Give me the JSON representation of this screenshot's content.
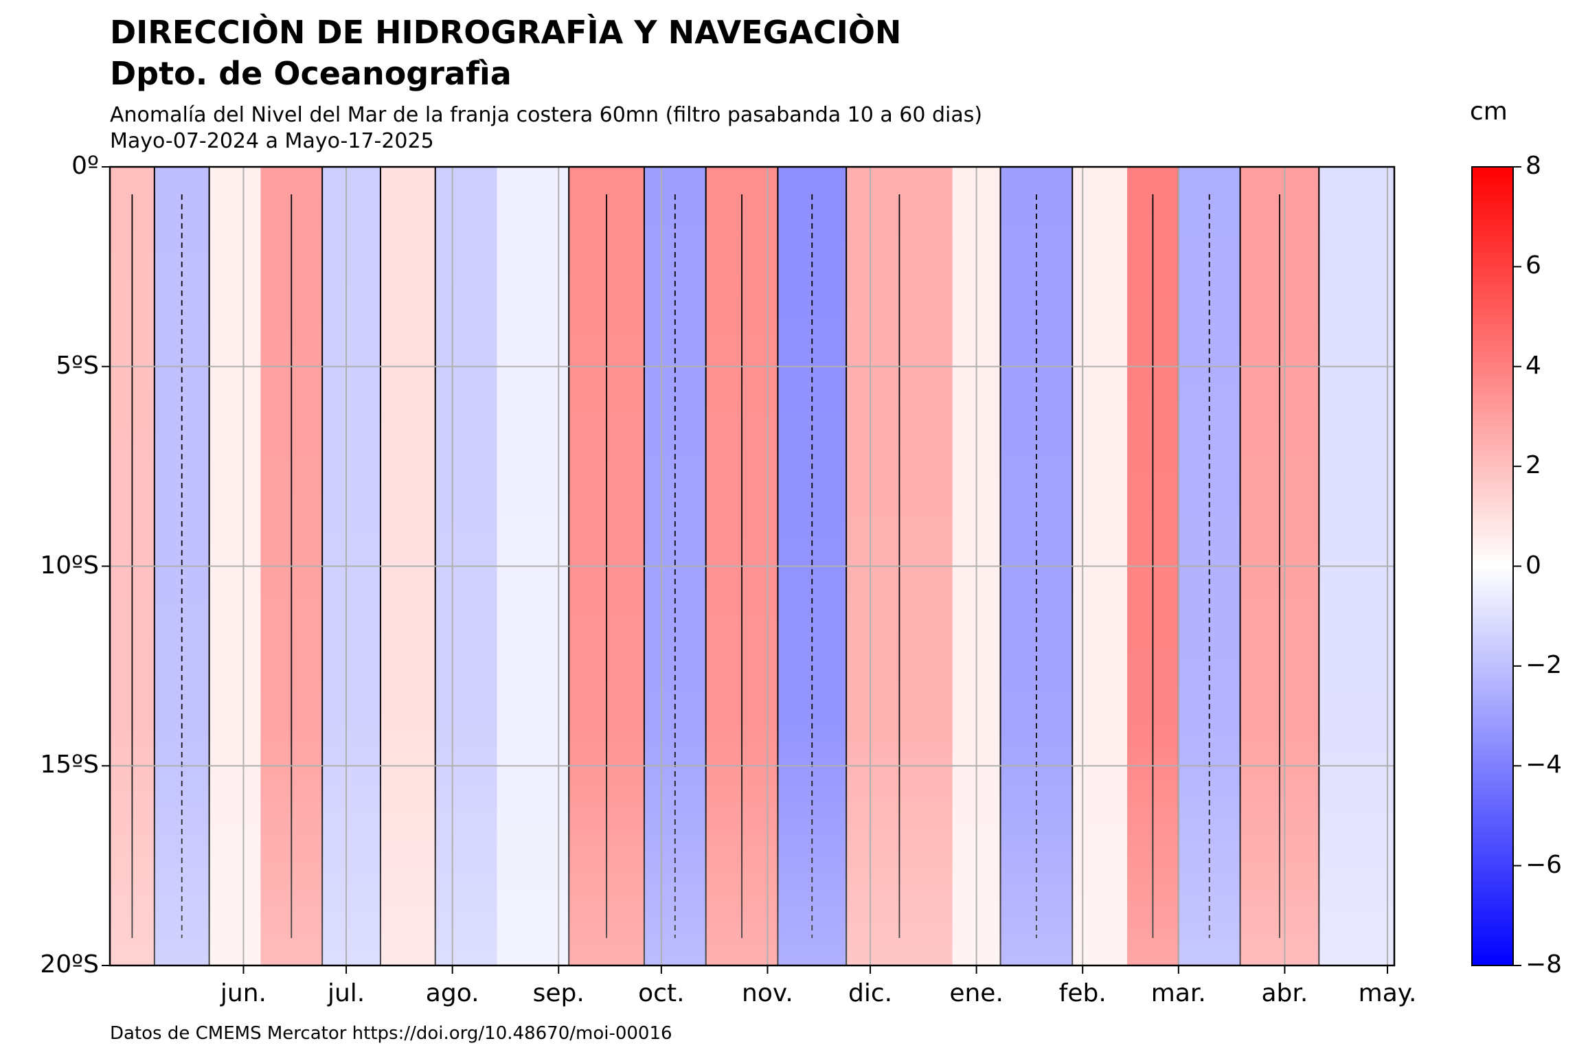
{
  "header": {
    "title_line1": "DIRECCIÒN DE HIDROGRAFÌA Y NAVEGACIÒN",
    "title_line2": "Dpto. de Oceanografìa",
    "subtitle_line1": "Anomalía del Nivel del Mar de la franja costera 60mn (filtro pasabanda 10 a 60 dias)",
    "subtitle_line2": "Mayo-07-2024 a Mayo-17-2025"
  },
  "footer": {
    "source": "Datos de CMEMS Mercator https://doi.org/10.48670/moi-00016"
  },
  "colorbar": {
    "unit": "cm",
    "ticks": [
      "8",
      "6",
      "4",
      "2",
      "0",
      "−2",
      "−4",
      "−6",
      "−8"
    ],
    "colors": {
      "max": "#ff0000",
      "mid": "#ffffff",
      "min": "#0000ff"
    }
  },
  "chart_data": {
    "type": "heatmap",
    "xlabel": "",
    "ylabel": "",
    "x_tick_labels": [
      "jun.",
      "jul.",
      "ago.",
      "sep.",
      "oct.",
      "nov.",
      "dic.",
      "ene.",
      "feb.",
      "mar.",
      "abr.",
      "may."
    ],
    "y_tick_labels": [
      "0º",
      "5ºS",
      "10ºS",
      "15ºS",
      "20ºS"
    ],
    "y_range_deg_south": [
      0,
      20
    ],
    "x_range": [
      "2024-05-07",
      "2025-05-17"
    ],
    "value_range": [
      -8,
      8
    ],
    "grid": true,
    "contour_levels": [
      -4,
      -2,
      0,
      2,
      4
    ],
    "bands": [
      {
        "start": "2024-05-07",
        "end": "2024-05-20",
        "value": 2.0
      },
      {
        "start": "2024-05-20",
        "end": "2024-06-05",
        "value": -2.0
      },
      {
        "start": "2024-06-05",
        "end": "2024-06-20",
        "value": 0.5
      },
      {
        "start": "2024-06-20",
        "end": "2024-07-08",
        "value": 3.0
      },
      {
        "start": "2024-07-08",
        "end": "2024-07-25",
        "value": -1.5
      },
      {
        "start": "2024-07-25",
        "end": "2024-08-10",
        "value": 1.0
      },
      {
        "start": "2024-08-10",
        "end": "2024-08-28",
        "value": -1.5
      },
      {
        "start": "2024-08-28",
        "end": "2024-09-18",
        "value": -0.5
      },
      {
        "start": "2024-09-18",
        "end": "2024-10-10",
        "value": 3.5
      },
      {
        "start": "2024-10-10",
        "end": "2024-10-28",
        "value": -3.0
      },
      {
        "start": "2024-10-28",
        "end": "2024-11-18",
        "value": 3.5
      },
      {
        "start": "2024-11-18",
        "end": "2024-12-08",
        "value": -3.5
      },
      {
        "start": "2024-12-08",
        "end": "2025-01-08",
        "value": 2.5
      },
      {
        "start": "2025-01-08",
        "end": "2025-01-22",
        "value": 0.5
      },
      {
        "start": "2025-01-22",
        "end": "2025-02-12",
        "value": -3.0
      },
      {
        "start": "2025-02-12",
        "end": "2025-02-28",
        "value": 0.5
      },
      {
        "start": "2025-02-28",
        "end": "2025-03-15",
        "value": 4.0
      },
      {
        "start": "2025-03-15",
        "end": "2025-04-02",
        "value": -2.5
      },
      {
        "start": "2025-04-02",
        "end": "2025-04-25",
        "value": 3.0
      },
      {
        "start": "2025-04-25",
        "end": "2025-05-17",
        "value": -1.0
      }
    ]
  }
}
